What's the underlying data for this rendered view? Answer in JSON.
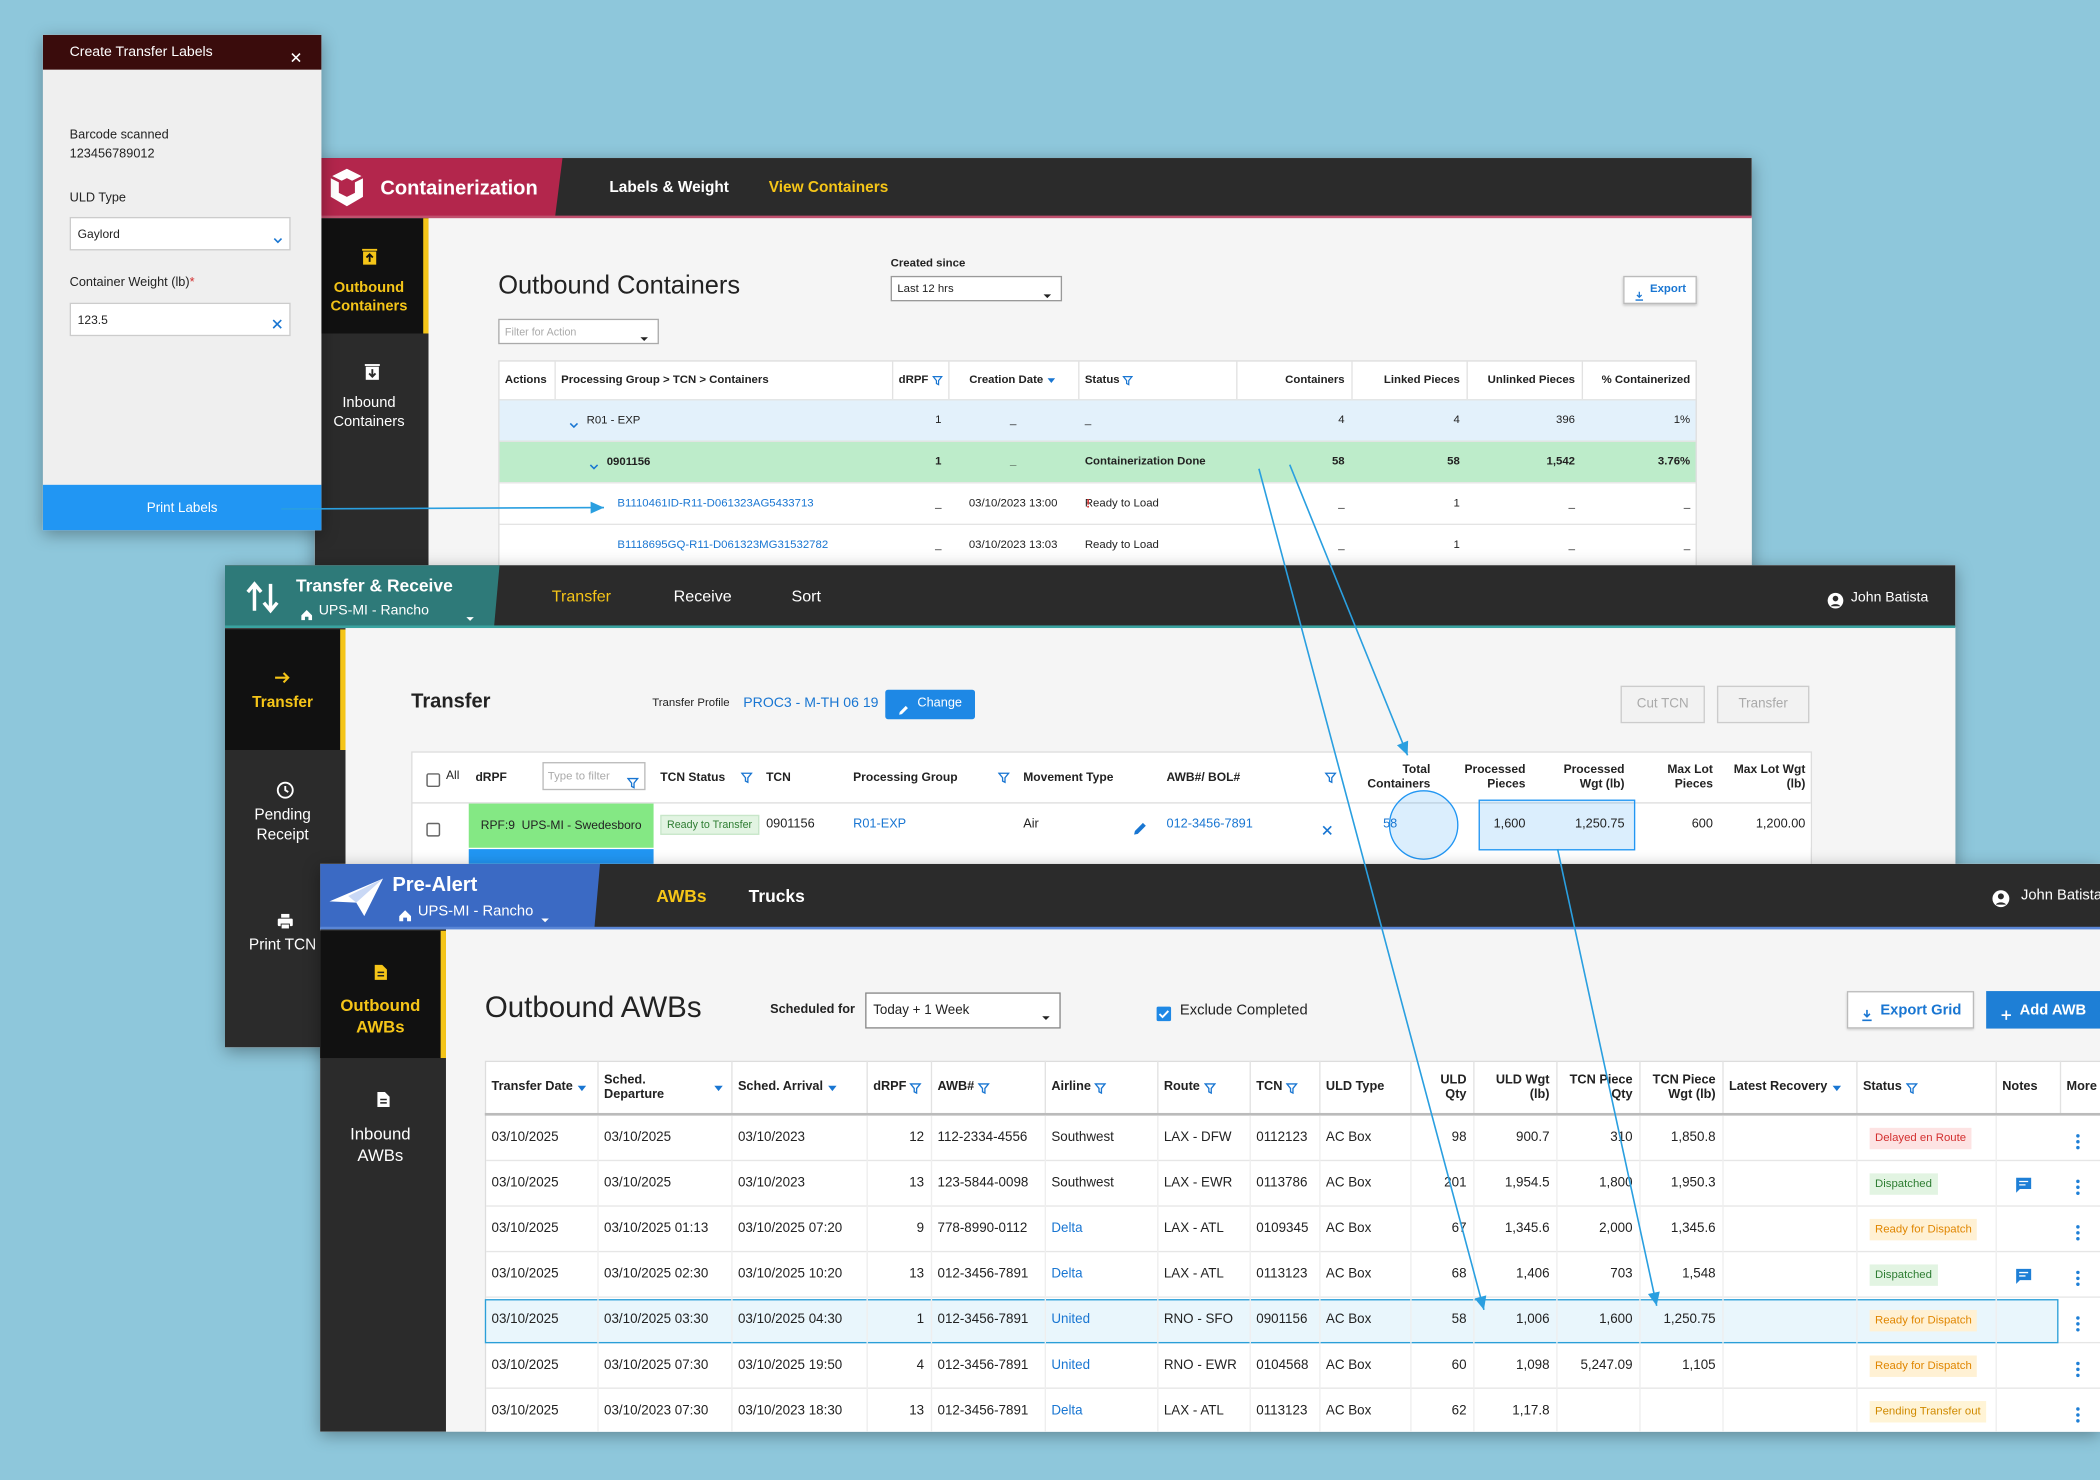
{
  "dialog": {
    "title": "Create Transfer Labels",
    "barcode_label": "Barcode scanned",
    "barcode": "123456789012",
    "uld_type_label": "ULD Type",
    "uld_type": "Gaylord",
    "weight_label": "Container Weight (lb)",
    "required_mark": "*",
    "weight": "123.5",
    "button": "Print Labels"
  },
  "containerization": {
    "app": "Containerization",
    "tabs": [
      "Labels & Weight",
      "View Containers"
    ],
    "active_tab": 1,
    "nav": [
      "Outbound Containers",
      "Inbound Containers"
    ],
    "title": "Outbound Containers",
    "created_since_label": "Created since",
    "created_since": "Last 12 hrs",
    "filter_placeholder": "Filter for Action",
    "export": "Export",
    "columns": [
      {
        "label": "Actions"
      },
      {
        "label": "Processing Group > TCN > Containers"
      },
      {
        "label": "dRPF",
        "icon": "filter"
      },
      {
        "label": "Creation Date",
        "icon": "sort"
      },
      {
        "label": "Status",
        "icon": "filter"
      },
      {
        "label": "Containers"
      },
      {
        "label": "Linked Pieces"
      },
      {
        "label": "Unlinked Pieces"
      },
      {
        "label": "% Containerized"
      }
    ],
    "rows": [
      {
        "cells": [
          "R01 - EXP",
          "1",
          "_",
          "_",
          "4",
          "4",
          "396",
          "1%"
        ]
      },
      {
        "cells": [
          "0901156",
          "1",
          "_",
          "Containerization Done",
          "58",
          "58",
          "1,542",
          "3.76%"
        ]
      },
      {
        "cells": [
          "B1110461ID-R11-D061323AG5433713",
          "_",
          "03/10/2023 13:00",
          "Ready to Load",
          "_",
          "1",
          "_",
          "_"
        ],
        "alert": "!"
      },
      {
        "cells": [
          "B1118695GQ-R11-D061323MG31532782",
          "_",
          "03/10/2023 13:03",
          "Ready to Load",
          "_",
          "1",
          "_",
          "_"
        ]
      }
    ]
  },
  "transfer": {
    "app": "Transfer & Receive",
    "location": "UPS-MI - Rancho",
    "tabs": [
      "Transfer",
      "Receive",
      "Sort"
    ],
    "active_tab": 0,
    "user": "John Batista",
    "nav": [
      "Transfer",
      "Pending Receipt",
      "Print TCN"
    ],
    "title": "Transfer",
    "profile_label": "Transfer Profile",
    "profile": "PROC3 - M-TH 06 19",
    "change": "Change",
    "actions": [
      "Cut TCN",
      "Transfer"
    ],
    "filter_placeholder": "Type to filter",
    "columns": [
      {
        "label": "All"
      },
      {
        "label": "dRPF"
      },
      {
        "label": "TCN Status",
        "icon": "filter"
      },
      {
        "label": "TCN"
      },
      {
        "label": "Processing Group",
        "icon": "filter"
      },
      {
        "label": "Movement Type"
      },
      {
        "label": "AWB#/ BOL#",
        "icon": "filter"
      },
      {
        "label": "Total Containers"
      },
      {
        "label": "Processed Pieces"
      },
      {
        "label": "Processed Wgt (lb)"
      },
      {
        "label": "Max Lot Pieces"
      },
      {
        "label": "Max Lot Wgt (lb)"
      }
    ],
    "rows": [
      {
        "cells": [
          "RPF:9  UPS-MI - Swedesboro",
          "Ready to Transfer",
          "0901156",
          "R01-EXP",
          "Air",
          "012-3456-7891",
          "58",
          "1,600",
          "1,250.75",
          "600",
          "1,200.00"
        ]
      }
    ]
  },
  "prealert": {
    "app": "Pre-Alert",
    "location": "UPS-MI - Rancho",
    "tabs": [
      "AWBs",
      "Trucks"
    ],
    "active_tab": 0,
    "user": "John Batista",
    "nav": [
      "Outbound AWBs",
      "Inbound AWBs"
    ],
    "title": "Outbound AWBs",
    "scheduled_label": "Scheduled for",
    "scheduled": "Today + 1 Week",
    "exclude": "Exclude Completed",
    "export": "Export Grid",
    "add": "Add AWB",
    "columns": [
      {
        "label": "Transfer Date",
        "icon": "sort"
      },
      {
        "label": "Sched. Departure",
        "icon": "sort"
      },
      {
        "label": "Sched. Arrival",
        "icon": "sort"
      },
      {
        "label": "dRPF",
        "icon": "filter"
      },
      {
        "label": "AWB#",
        "icon": "filter"
      },
      {
        "label": "Airline",
        "icon": "filter"
      },
      {
        "label": "Route",
        "icon": "filter"
      },
      {
        "label": "TCN",
        "icon": "filter"
      },
      {
        "label": "ULD Type"
      },
      {
        "label": "ULD Qty"
      },
      {
        "label": "ULD Wgt (lb)"
      },
      {
        "label": "TCN Piece Qty"
      },
      {
        "label": "TCN Piece Wgt (lb)"
      },
      {
        "label": "Latest Recovery",
        "icon": "sort"
      },
      {
        "label": "Status",
        "icon": "filter"
      },
      {
        "label": "Notes"
      },
      {
        "label": "More"
      }
    ],
    "rows": [
      {
        "cells": [
          "03/10/2025",
          "03/10/2025",
          "03/10/2023",
          "12",
          "112-2334-4556",
          "Southwest",
          "LAX - DFW",
          "0112123",
          "AC Box",
          "98",
          "900.7",
          "310",
          "1,850.8"
        ],
        "status": "Delayed en Route",
        "status_color": "#d32f2f",
        "status_bg": "#fde3e3"
      },
      {
        "cells": [
          "03/10/2025",
          "03/10/2025",
          "03/10/2023",
          "13",
          "123-5844-0098",
          "Southwest",
          "LAX - EWR",
          "0113786",
          "AC Box",
          "201",
          "1,954.5",
          "1,800",
          "1,950.3"
        ],
        "status": "Dispatched",
        "status_color": "#2e7d32",
        "status_bg": "#e2f4e2",
        "notes": true
      },
      {
        "cells": [
          "03/10/2025",
          "03/10/2025 01:13",
          "03/10/2025 07:20",
          "9",
          "778-8990-0112",
          "Delta",
          "LAX - ATL",
          "0109345",
          "AC Box",
          "67",
          "1,345.6",
          "2,000",
          "1,345.6"
        ],
        "status": "Ready for Dispatch",
        "status_color": "#e08600",
        "status_bg": "#fff1d4",
        "airline_link": true
      },
      {
        "cells": [
          "03/10/2025",
          "03/10/2025 02:30",
          "03/10/2025 10:20",
          "13",
          "012-3456-7891",
          "Delta",
          "LAX - ATL",
          "0113123",
          "AC Box",
          "68",
          "1,406",
          "703",
          "1,548"
        ],
        "status": "Dispatched",
        "status_color": "#2e7d32",
        "status_bg": "#e2f4e2",
        "notes": true,
        "airline_link": true
      },
      {
        "cells": [
          "03/10/2025",
          "03/10/2025 03:30",
          "03/10/2025 04:30",
          "1",
          "012-3456-7891",
          "United",
          "RNO - SFO",
          "0901156",
          "AC Box",
          "58",
          "1,006",
          "1,600",
          "1,250.75"
        ],
        "status": "Ready for Dispatch",
        "status_color": "#e08600",
        "status_bg": "#fff1d4",
        "airline_link": true,
        "highlight": true
      },
      {
        "cells": [
          "03/10/2025",
          "03/10/2025 07:30",
          "03/10/2025 19:50",
          "4",
          "012-3456-7891",
          "United",
          "RNO - EWR",
          "0104568",
          "AC Box",
          "60",
          "1,098",
          "5,247.09",
          "1,105"
        ],
        "status": "Ready for Dispatch",
        "status_color": "#e08600",
        "status_bg": "#fff1d4",
        "airline_link": true
      },
      {
        "cells": [
          "03/10/2025",
          "03/10/2023 07:30",
          "03/10/2023 18:30",
          "13",
          "012-3456-7891",
          "Delta",
          "LAX - ATL",
          "0113123",
          "AC Box",
          "62",
          "1,17.8",
          null,
          null
        ],
        "status": "Pending Transfer out",
        "status_color": "#d08a00",
        "status_bg": "#fff4d6",
        "airline_link": true
      }
    ]
  }
}
